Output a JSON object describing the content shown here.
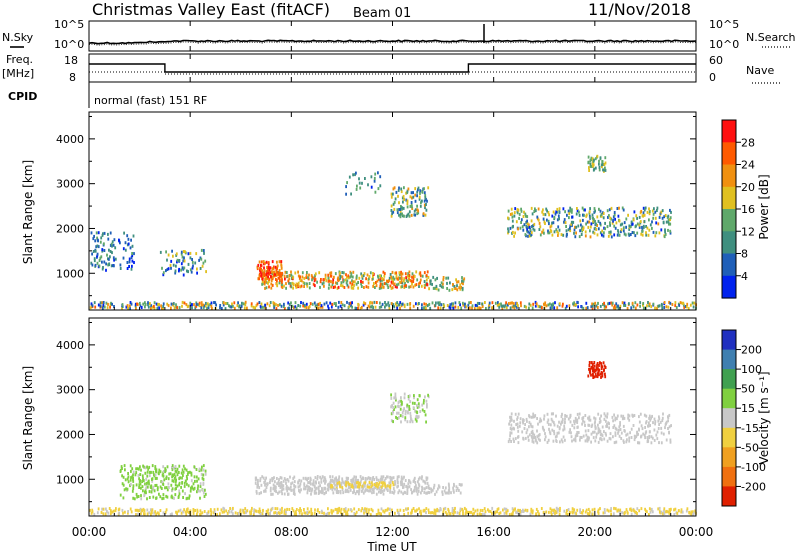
{
  "header": {
    "site": "Christmas Valley East (fitACF)",
    "beam": "Beam 01",
    "date": "11/Nov/2018"
  },
  "sky_panel": {
    "left_label": "N.Sky",
    "left_ticks": [
      "10^5",
      "10^0"
    ],
    "right_label": "N.Search",
    "right_ticks": [
      "10^5",
      "10^0"
    ]
  },
  "freq_panel": {
    "left_label_1": "Freq.",
    "left_label_2": "[MHz]",
    "left_ticks": [
      "18",
      "8"
    ],
    "right_label": "Nave",
    "right_ticks": [
      "60",
      "0"
    ],
    "cpid_label": "CPID",
    "mode": "normal (fast) 151 RF"
  },
  "colors": {
    "power_scale": [
      "#0022ee",
      "#1f5fb8",
      "#3f8f7f",
      "#5fa86a",
      "#e0c020",
      "#f09010",
      "#ff5a00",
      "#ff1010"
    ],
    "velocity_scale": [
      "#2030c0",
      "#3f7fb0",
      "#40a050",
      "#80d040",
      "#c8c8c8",
      "#f0d040",
      "#f0a020",
      "#f07010",
      "#e02000"
    ]
  },
  "chart_data": [
    {
      "type": "heatmap",
      "name": "Power",
      "ylabel": "Slant Range [km]",
      "yticks": [
        "4000",
        "3000",
        "2000",
        "1000"
      ],
      "ylim": [
        180,
        4600
      ],
      "xlim_hours": [
        0,
        24
      ],
      "colorbar_label": "Power [dB]",
      "colorbar_ticks": [
        "28",
        "24",
        "20",
        "16",
        "12",
        "8",
        "4"
      ],
      "colorbar_range": [
        0,
        32
      ],
      "patches": [
        {
          "t": [
            0.0,
            24.0
          ],
          "r": [
            200,
            340
          ],
          "v": 14,
          "spread": 12,
          "density": 0.55
        },
        {
          "t": [
            6.8,
            13.4
          ],
          "r": [
            650,
            1020
          ],
          "v": 20,
          "spread": 9,
          "density": 0.5
        },
        {
          "t": [
            6.6,
            7.6
          ],
          "r": [
            850,
            1250
          ],
          "v": 26,
          "spread": 6,
          "density": 0.6
        },
        {
          "t": [
            13.4,
            14.8
          ],
          "r": [
            600,
            900
          ],
          "v": 16,
          "spread": 8,
          "density": 0.35
        },
        {
          "t": [
            2.8,
            4.6
          ],
          "r": [
            950,
            1500
          ],
          "v": 10,
          "spread": 8,
          "density": 0.25
        },
        {
          "t": [
            0.0,
            1.8
          ],
          "r": [
            1050,
            1900
          ],
          "v": 8,
          "spread": 6,
          "density": 0.2
        },
        {
          "t": [
            11.9,
            13.4
          ],
          "r": [
            2250,
            2900
          ],
          "v": 14,
          "spread": 8,
          "density": 0.35
        },
        {
          "t": [
            10.0,
            11.5
          ],
          "r": [
            2750,
            3250
          ],
          "v": 9,
          "spread": 6,
          "density": 0.15
        },
        {
          "t": [
            16.5,
            23.0
          ],
          "r": [
            1800,
            2450
          ],
          "v": 12,
          "spread": 9,
          "density": 0.3
        },
        {
          "t": [
            19.7,
            20.4
          ],
          "r": [
            3250,
            3600
          ],
          "v": 14,
          "spread": 6,
          "density": 0.5
        }
      ]
    },
    {
      "type": "heatmap",
      "name": "Velocity",
      "ylabel": "Slant Range [km]",
      "yticks": [
        "4000",
        "3000",
        "2000",
        "1000"
      ],
      "ylim": [
        180,
        4600
      ],
      "xlim_hours": [
        0,
        24
      ],
      "colorbar_label": "Velocity [m s⁻¹]",
      "colorbar_ticks": [
        "200",
        "100",
        "50",
        "15",
        "-15",
        "-50",
        "-100",
        "-200"
      ],
      "colorbar_range": [
        -250,
        250
      ],
      "patches": [
        {
          "t": [
            0.0,
            24.0
          ],
          "r": [
            200,
            340
          ],
          "v": -40,
          "spread": 25,
          "density": 0.55
        },
        {
          "t": [
            6.5,
            13.4
          ],
          "r": [
            650,
            1050
          ],
          "v": 0,
          "spread": 8,
          "density": 0.5
        },
        {
          "t": [
            9.5,
            12.0
          ],
          "r": [
            800,
            920
          ],
          "v": -40,
          "spread": 15,
          "density": 0.5
        },
        {
          "t": [
            1.2,
            4.6
          ],
          "r": [
            550,
            1300
          ],
          "v": 35,
          "spread": 10,
          "density": 0.3
        },
        {
          "t": [
            13.4,
            14.8
          ],
          "r": [
            650,
            900
          ],
          "v": 0,
          "spread": 10,
          "density": 0.3
        },
        {
          "t": [
            11.9,
            13.4
          ],
          "r": [
            2250,
            2900
          ],
          "v": 25,
          "spread": 15,
          "density": 0.35
        },
        {
          "t": [
            16.5,
            23.0
          ],
          "r": [
            1800,
            2450
          ],
          "v": 0,
          "spread": 6,
          "density": 0.3
        },
        {
          "t": [
            19.7,
            20.4
          ],
          "r": [
            3250,
            3600
          ],
          "v": -220,
          "spread": 10,
          "density": 0.6
        }
      ]
    }
  ],
  "time_axis": {
    "ticks": [
      "00:00",
      "04:00",
      "08:00",
      "12:00",
      "16:00",
      "20:00",
      "00:00"
    ],
    "label": "Time UT"
  }
}
